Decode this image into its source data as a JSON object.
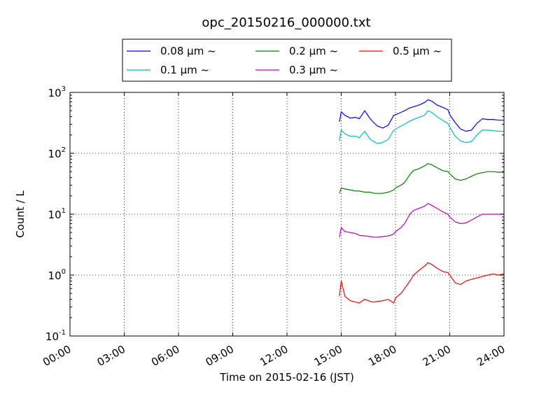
{
  "chart_data": {
    "type": "line",
    "title": "opc_20150216_000000.txt",
    "xlabel": "Time on 2015-02-16 (JST)",
    "ylabel": "Count / L",
    "x_unit": "hours (JST)",
    "xlim": [
      0,
      24
    ],
    "ylim": [
      0.1,
      1000
    ],
    "yscale": "log",
    "grid": true,
    "legend_position": "top-center",
    "xticks": [
      0,
      3,
      6,
      9,
      12,
      15,
      18,
      21,
      24
    ],
    "xtick_labels": [
      "00:00",
      "03:00",
      "06:00",
      "09:00",
      "12:00",
      "15:00",
      "18:00",
      "21:00",
      "24:00"
    ],
    "yticks": [
      {
        "value": 0.1,
        "base": "10",
        "exp": "-1"
      },
      {
        "value": 1,
        "base": "10",
        "exp": "0"
      },
      {
        "value": 10,
        "base": "10",
        "exp": "1"
      },
      {
        "value": 100,
        "base": "10",
        "exp": "2"
      },
      {
        "value": 1000,
        "base": "10",
        "exp": "3"
      }
    ],
    "x": [
      14.9,
      15.0,
      15.2,
      15.5,
      15.8,
      16.0,
      16.3,
      16.6,
      16.8,
      17.0,
      17.3,
      17.6,
      17.9,
      18.0,
      18.3,
      18.5,
      18.8,
      19.0,
      19.3,
      19.6,
      19.8,
      20.0,
      20.3,
      20.6,
      20.9,
      21.0,
      21.3,
      21.6,
      21.9,
      22.2,
      22.5,
      22.8,
      23.1,
      23.4,
      23.7,
      24.0
    ],
    "series": [
      {
        "name": "0.08 μm ~",
        "color": "#0000ff",
        "values": [
          330,
          480,
          420,
          380,
          390,
          370,
          500,
          370,
          320,
          280,
          260,
          290,
          420,
          430,
          470,
          500,
          560,
          580,
          620,
          680,
          760,
          720,
          620,
          570,
          520,
          430,
          320,
          250,
          230,
          240,
          310,
          370,
          360,
          360,
          350,
          350
        ]
      },
      {
        "name": "0.1 μm ~",
        "color": "#00bfbf",
        "values": [
          160,
          240,
          210,
          190,
          190,
          180,
          230,
          170,
          155,
          145,
          150,
          170,
          240,
          250,
          280,
          300,
          340,
          360,
          390,
          420,
          500,
          470,
          400,
          350,
          310,
          270,
          190,
          160,
          150,
          155,
          200,
          240,
          240,
          235,
          230,
          230
        ]
      },
      {
        "name": "0.2 μm ~",
        "color": "#008000",
        "values": [
          22,
          27,
          26,
          25,
          24,
          24,
          23,
          23,
          22,
          22,
          22,
          23,
          25,
          27,
          30,
          33,
          45,
          52,
          56,
          62,
          68,
          65,
          58,
          52,
          50,
          46,
          38,
          36,
          38,
          42,
          46,
          48,
          50,
          50,
          49,
          49
        ]
      },
      {
        "name": "0.3 μm ~",
        "color": "#bf00bf",
        "values": [
          4.2,
          6.0,
          5.2,
          5.0,
          4.8,
          4.5,
          4.4,
          4.3,
          4.2,
          4.2,
          4.3,
          4.4,
          4.7,
          5.2,
          6.0,
          7.0,
          10,
          11.5,
          12.5,
          13.5,
          15,
          14,
          12.5,
          11,
          10,
          9,
          7.5,
          7.0,
          7.2,
          8.0,
          9.0,
          10,
          10,
          10,
          10,
          10
        ]
      },
      {
        "name": "0.5 μm ~",
        "color": "#ff0000",
        "values": [
          0.45,
          0.8,
          0.45,
          0.38,
          0.36,
          0.35,
          0.4,
          0.37,
          0.36,
          0.37,
          0.38,
          0.4,
          0.35,
          0.42,
          0.5,
          0.6,
          0.8,
          1.0,
          1.2,
          1.4,
          1.6,
          1.5,
          1.3,
          1.15,
          1.1,
          1.0,
          0.75,
          0.7,
          0.8,
          0.85,
          0.9,
          0.95,
          1.0,
          1.05,
          1.0,
          1.05
        ]
      }
    ]
  }
}
